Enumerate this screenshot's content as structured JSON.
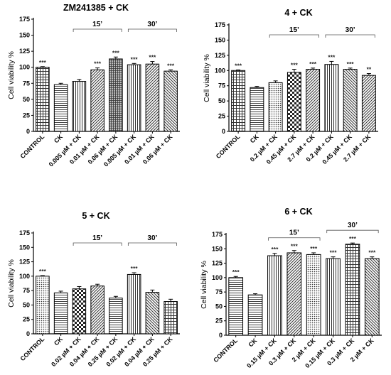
{
  "chart_data": [
    {
      "type": "bar",
      "title": "ZM241385 + CK",
      "ylabel": "Cell viability %",
      "ylim": [
        0,
        175
      ],
      "yticks": [
        0,
        25,
        50,
        75,
        100,
        125,
        150,
        175
      ],
      "categories": [
        "CONTROL",
        "CK",
        "0.005 µM + CK",
        "0.01 µM + CK",
        "0.06 µM + CK",
        "0.005 µM + CK",
        "0.01 µM + CK",
        "0.06 µM + CK"
      ],
      "values": [
        100,
        73,
        78,
        96,
        113,
        104,
        105,
        94
      ],
      "errors": [
        1,
        2,
        3,
        3,
        3,
        2,
        4,
        2
      ],
      "significance": [
        "***",
        "",
        "",
        "***",
        "***",
        "***",
        "***",
        "***"
      ],
      "groups": [
        {
          "label": "15’",
          "from": 2,
          "to": 4
        },
        {
          "label": "30’",
          "from": 5,
          "to": 7
        }
      ],
      "patterns": [
        "grid",
        "hlines",
        "vlines",
        "diag",
        "dense",
        "vlines",
        "diag",
        "back"
      ]
    },
    {
      "type": "bar",
      "title": "4 + CK",
      "ylabel": "Cell viability %",
      "ylim": [
        0,
        175
      ],
      "yticks": [
        0,
        25,
        50,
        75,
        100,
        125,
        150,
        175
      ],
      "categories": [
        "CONTROL",
        "CK",
        "0.2 µM + CK",
        "0.45 µM + CK",
        "2.7 µM + CK",
        "0.2 µM + CK",
        "0.45 µM + CK",
        "2.7 µM + CK"
      ],
      "values": [
        100,
        72,
        80,
        97,
        102,
        110,
        102,
        92
      ],
      "errors": [
        1,
        2,
        3,
        5,
        2,
        5,
        2,
        3
      ],
      "significance": [
        "***",
        "",
        "",
        "***",
        "***",
        "***",
        "***",
        "**"
      ],
      "groups": [
        {
          "label": "15’",
          "from": 2,
          "to": 4
        },
        {
          "label": "30’",
          "from": 5,
          "to": 7
        }
      ],
      "patterns": [
        "grid",
        "hlines",
        "dots",
        "check",
        "diag",
        "vlines",
        "back",
        "diag"
      ]
    },
    {
      "type": "bar",
      "title": "5 + CK",
      "ylabel": "Cell viability %",
      "ylim": [
        0,
        175
      ],
      "yticks": [
        0,
        25,
        50,
        75,
        100,
        125,
        150,
        175
      ],
      "categories": [
        "CONTROL",
        "CK",
        "0.02 µM + CK",
        "0.04 µM + CK",
        "0.25 µM + CK",
        "0.02 µM + CK",
        "0.04 µM + CK",
        "0.25 µM + CK"
      ],
      "values": [
        100,
        71,
        78,
        83,
        62,
        103,
        72,
        56
      ],
      "errors": [
        1,
        3,
        4,
        3,
        3,
        3,
        4,
        4
      ],
      "significance": [
        "***",
        "",
        "",
        "",
        "",
        "***",
        "",
        ""
      ],
      "groups": [
        {
          "label": "15’",
          "from": 2,
          "to": 4
        },
        {
          "label": "30’",
          "from": 5,
          "to": 7
        }
      ],
      "patterns": [
        "dots",
        "hlines",
        "check",
        "diag",
        "hlines",
        "vlines",
        "back",
        "grid"
      ]
    },
    {
      "type": "bar",
      "title": "6 + CK",
      "ylabel": "Cell viability %",
      "ylim": [
        0,
        175
      ],
      "yticks": [
        0,
        25,
        50,
        75,
        100,
        125,
        150,
        175
      ],
      "categories": [
        "CONTROL",
        "CK",
        "0.15 µM + CK",
        "0.3 µM + CK",
        "2 µM + CK",
        "0.15 µM + CK",
        "0.3 µM + CK",
        "2 µM + CK"
      ],
      "values": [
        100,
        70,
        138,
        143,
        140,
        133,
        158,
        133
      ],
      "errors": [
        2,
        2,
        4,
        4,
        3,
        3,
        2,
        3
      ],
      "significance": [
        "***",
        "",
        "***",
        "***",
        "***",
        "***",
        "***",
        "***"
      ],
      "groups": [
        {
          "label": "15’",
          "from": 2,
          "to": 4
        },
        {
          "label": "30’",
          "from": 5,
          "to": 7
        }
      ],
      "patterns": [
        "hlines",
        "hlines",
        "vlines",
        "diag",
        "dots",
        "vlines",
        "grid",
        "back"
      ]
    }
  ]
}
